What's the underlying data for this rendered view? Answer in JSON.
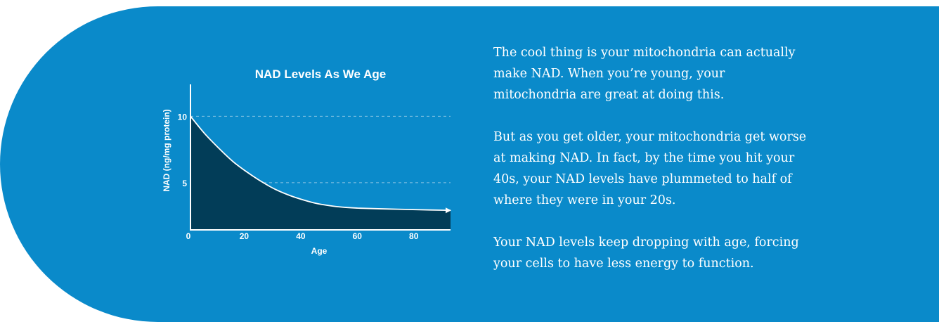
{
  "colors": {
    "background": "#0a8aca",
    "area_fill": "#023d58",
    "line": "#ffffff",
    "grid": "#8cc5e3",
    "text": "#ffffff"
  },
  "chart_data": {
    "type": "area",
    "title": "NAD Levels As We Age",
    "xlabel": "Age",
    "ylabel": "NAD (ng/mg protein)",
    "xlim": [
      0,
      92
    ],
    "ylim": [
      1.45,
      12.4
    ],
    "x_ticks": [
      0,
      20,
      40,
      60,
      80
    ],
    "y_ticks": [
      5,
      10
    ],
    "grid": "horizontal dashed at y ticks",
    "legend": "none",
    "series": [
      {
        "name": "NAD level",
        "x": [
          0,
          5,
          10,
          15,
          20,
          25,
          30,
          35,
          40,
          45,
          50,
          55,
          60,
          70,
          80,
          92
        ],
        "y": [
          10,
          8.7,
          7.6,
          6.6,
          5.8,
          5.1,
          4.5,
          4.05,
          3.7,
          3.42,
          3.25,
          3.14,
          3.08,
          3.02,
          2.97,
          2.92
        ]
      }
    ],
    "annotations": [
      "arrow at end of curve indicating continued decline"
    ]
  },
  "copy": {
    "paragraphs": [
      "The cool thing is your mitochondria can actually make NAD. When you’re young, your mitochondria are great at doing this.",
      "But as you get older, your mitochondria get worse at making NAD. In fact, by the time you hit your 40s, your NAD levels have plummeted to half of where they were in your 20s.",
      "Your NAD levels keep dropping with age, forcing your cells to have less energy to function."
    ]
  }
}
